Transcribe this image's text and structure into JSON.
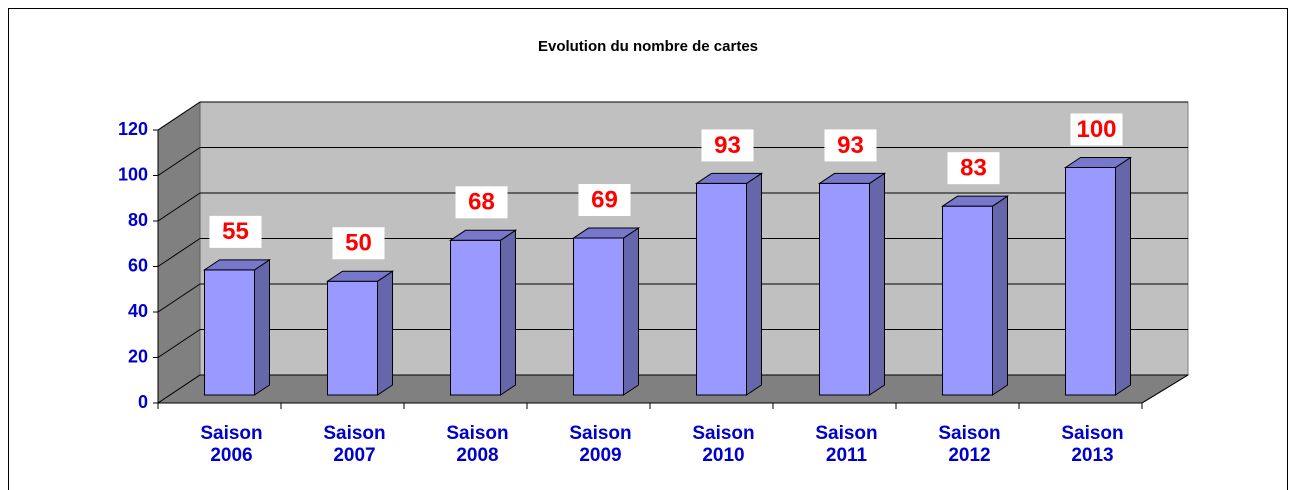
{
  "chart_data": {
    "type": "bar",
    "title": "Evolution du nombre de cartes",
    "categories": [
      "Saison 2006",
      "Saison 2007",
      "Saison 2008",
      "Saison 2009",
      "Saison 2010",
      "Saison 2011",
      "Saison 2012",
      "Saison 2013"
    ],
    "values": [
      55,
      50,
      68,
      69,
      93,
      93,
      83,
      100
    ],
    "color": "#9999ff",
    "ylim": [
      0,
      120
    ],
    "yticks": [
      0,
      20,
      40,
      60,
      80,
      100,
      120
    ],
    "grid": true
  }
}
